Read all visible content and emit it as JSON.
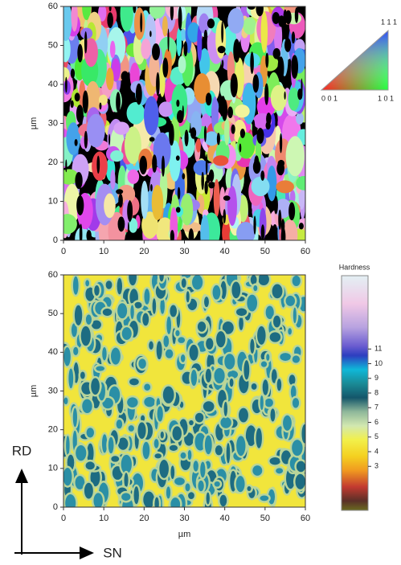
{
  "chart_data": [
    {
      "type": "orientation-map",
      "ylabel": "µm",
      "xlim": [
        0,
        60
      ],
      "ylim": [
        0,
        60
      ],
      "xticks": [
        0,
        10,
        20,
        30,
        40,
        50,
        60
      ],
      "yticks": [
        0,
        10,
        20,
        30,
        40,
        50,
        60
      ],
      "legend": {
        "top": "1 1 1",
        "left": "0 0 1",
        "right": "1 0 1"
      }
    },
    {
      "type": "contour-map",
      "xlabel": "µm",
      "ylabel": "µm",
      "xlim": [
        0,
        60
      ],
      "ylim": [
        0,
        60
      ],
      "xticks": [
        0,
        10,
        20,
        30,
        40,
        50,
        60
      ],
      "yticks": [
        0,
        10,
        20,
        30,
        40,
        50,
        60
      ],
      "colorbar": {
        "title": "Hardness",
        "lim": [
          0,
          16
        ],
        "ticks": [
          3,
          4,
          5,
          6,
          7,
          8,
          9,
          10,
          11
        ]
      }
    }
  ],
  "directions": {
    "up": "RD",
    "right": "SN"
  }
}
